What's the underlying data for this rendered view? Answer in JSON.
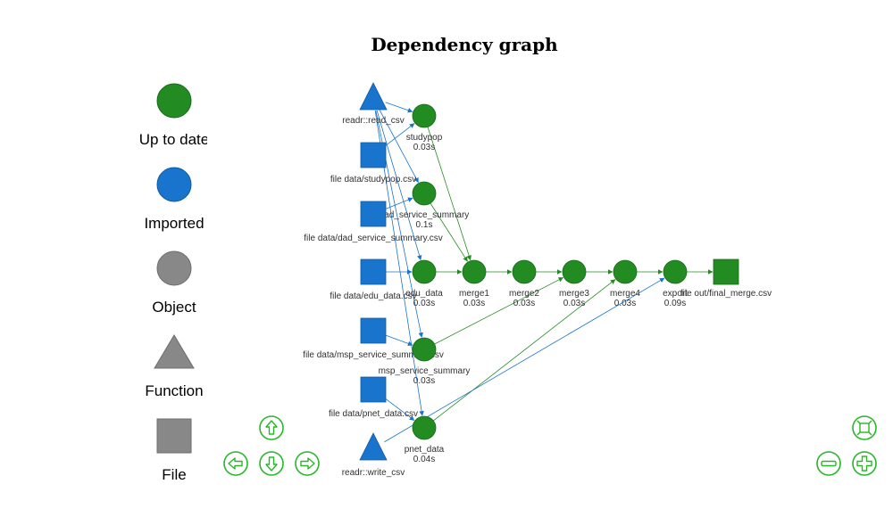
{
  "title": "Dependency graph",
  "legend": [
    {
      "label": "Up to date",
      "shape": "circle",
      "color": "#228B22"
    },
    {
      "label": "Imported",
      "shape": "circle",
      "color": "#1874CD"
    },
    {
      "label": "Object",
      "shape": "circle",
      "color": "#888888"
    },
    {
      "label": "Function",
      "shape": "triangle",
      "color": "#888888"
    },
    {
      "label": "File",
      "shape": "square",
      "color": "#888888"
    }
  ],
  "colors": {
    "up_to_date": "#228B22",
    "imported": "#1874CD",
    "nav": "#2BB52B"
  },
  "nodes": [
    {
      "id": "read_csv",
      "label": "readr::read_csv",
      "time": "",
      "status": "imported",
      "shape": "triangle"
    },
    {
      "id": "studypop",
      "label": "studypop",
      "time": "0.03s",
      "status": "up_to_date",
      "shape": "circle"
    },
    {
      "id": "f_studypop",
      "label": "file data/studypop.csv",
      "time": "",
      "status": "imported",
      "shape": "square"
    },
    {
      "id": "dad",
      "label": "dad_service_summary",
      "time": "0.1s",
      "status": "up_to_date",
      "shape": "circle"
    },
    {
      "id": "f_dad",
      "label": "file data/dad_service_summary.csv",
      "time": "",
      "status": "imported",
      "shape": "square"
    },
    {
      "id": "f_edu",
      "label": "file data/edu_data.csv",
      "time": "",
      "status": "imported",
      "shape": "square"
    },
    {
      "id": "edu",
      "label": "edu_data",
      "time": "0.03s",
      "status": "up_to_date",
      "shape": "circle"
    },
    {
      "id": "merge1",
      "label": "merge1",
      "time": "0.03s",
      "status": "up_to_date",
      "shape": "circle"
    },
    {
      "id": "merge2",
      "label": "merge2",
      "time": "0.03s",
      "status": "up_to_date",
      "shape": "circle"
    },
    {
      "id": "merge3",
      "label": "merge3",
      "time": "0.03s",
      "status": "up_to_date",
      "shape": "circle"
    },
    {
      "id": "merge4",
      "label": "merge4",
      "time": "0.03s",
      "status": "up_to_date",
      "shape": "circle"
    },
    {
      "id": "export",
      "label": "export",
      "time": "0.09s",
      "status": "up_to_date",
      "shape": "circle"
    },
    {
      "id": "f_out",
      "label": "file out/final_merge.csv",
      "time": "",
      "status": "up_to_date",
      "shape": "square"
    },
    {
      "id": "f_msp",
      "label": "file data/msp_service_summary.csv",
      "time": "",
      "status": "imported",
      "shape": "square"
    },
    {
      "id": "msp",
      "label": "msp_service_summary",
      "time": "0.03s",
      "status": "up_to_date",
      "shape": "circle"
    },
    {
      "id": "f_pnet",
      "label": "file data/pnet_data.csv",
      "time": "",
      "status": "imported",
      "shape": "square"
    },
    {
      "id": "pnet",
      "label": "pnet_data",
      "time": "0.04s",
      "status": "up_to_date",
      "shape": "circle"
    },
    {
      "id": "write_csv",
      "label": "readr::write_csv",
      "time": "",
      "status": "imported",
      "shape": "triangle"
    }
  ],
  "edges": [
    [
      "read_csv",
      "studypop"
    ],
    [
      "read_csv",
      "dad"
    ],
    [
      "read_csv",
      "edu"
    ],
    [
      "read_csv",
      "msp"
    ],
    [
      "read_csv",
      "pnet"
    ],
    [
      "f_studypop",
      "studypop"
    ],
    [
      "f_dad",
      "dad"
    ],
    [
      "f_edu",
      "edu"
    ],
    [
      "f_msp",
      "msp"
    ],
    [
      "f_pnet",
      "pnet"
    ],
    [
      "studypop",
      "merge1"
    ],
    [
      "dad",
      "merge1"
    ],
    [
      "edu",
      "merge1"
    ],
    [
      "merge1",
      "merge2"
    ],
    [
      "merge2",
      "merge3"
    ],
    [
      "msp",
      "merge3"
    ],
    [
      "merge3",
      "merge4"
    ],
    [
      "pnet",
      "merge4"
    ],
    [
      "merge4",
      "export"
    ],
    [
      "write_csv",
      "export"
    ],
    [
      "export",
      "f_out"
    ]
  ],
  "nav_buttons": [
    {
      "name": "pan-up-button",
      "icon": "arrow-up-icon"
    },
    {
      "name": "pan-left-button",
      "icon": "arrow-left-icon"
    },
    {
      "name": "pan-down-button",
      "icon": "arrow-down-icon"
    },
    {
      "name": "pan-right-button",
      "icon": "arrow-right-icon"
    },
    {
      "name": "fit-view-button",
      "icon": "fit-icon"
    },
    {
      "name": "zoom-out-button",
      "icon": "minus-icon"
    },
    {
      "name": "zoom-in-button",
      "icon": "plus-icon"
    }
  ]
}
